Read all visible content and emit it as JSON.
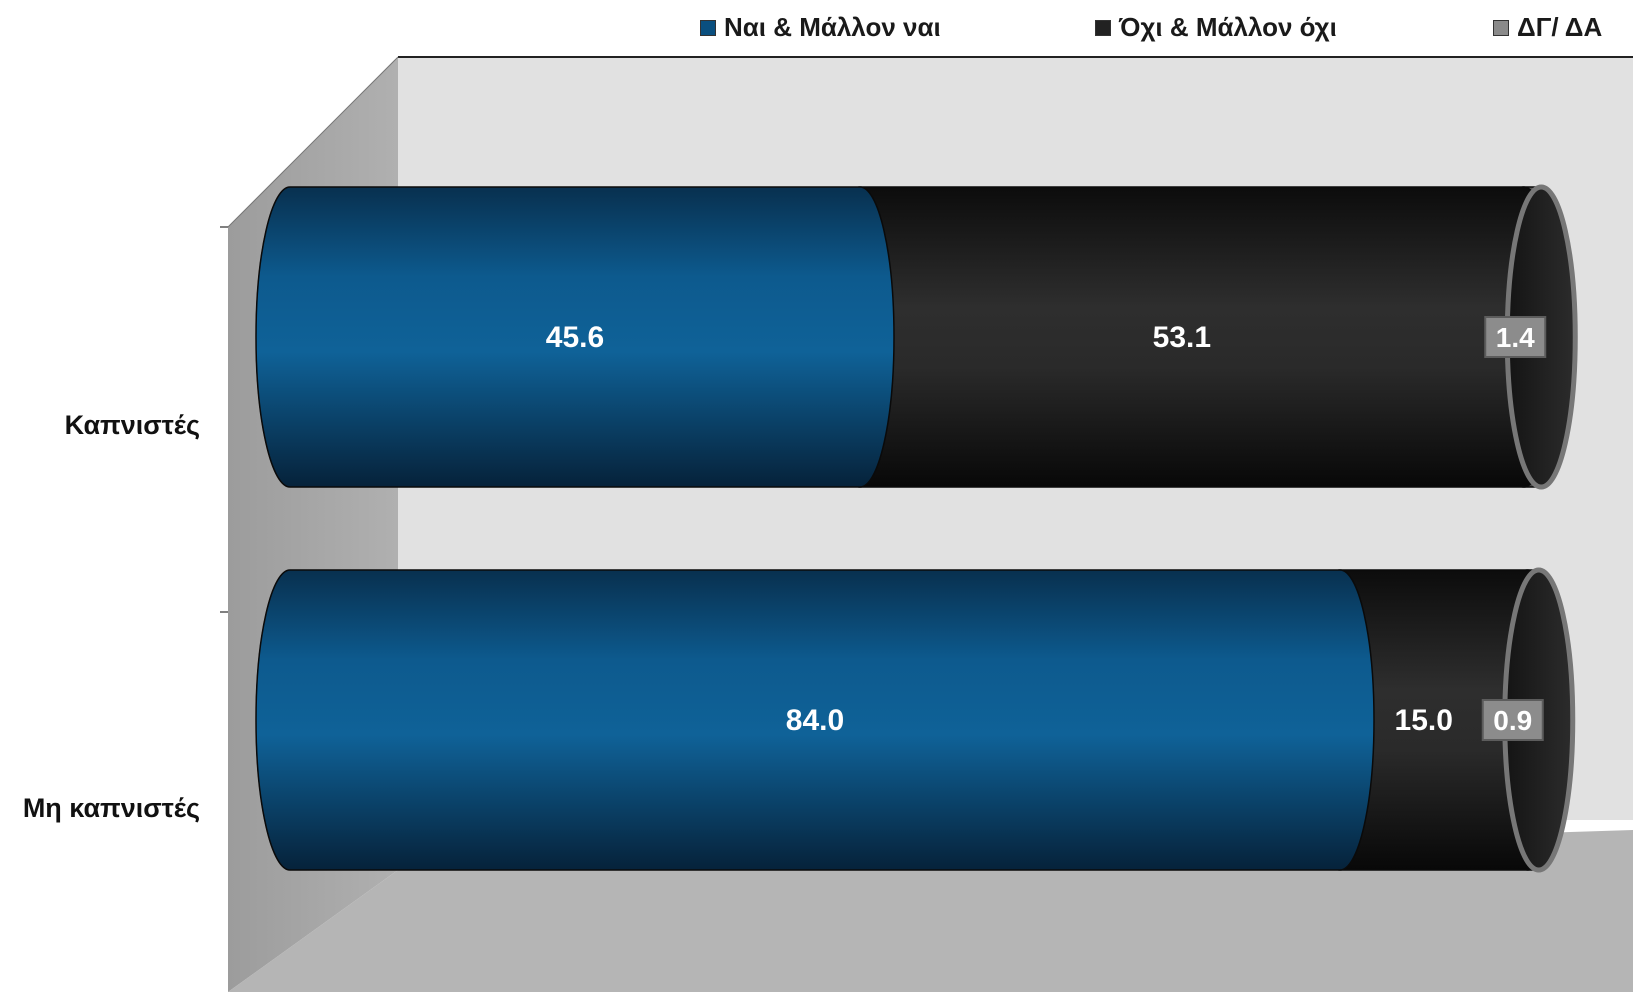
{
  "chart_data": {
    "type": "bar",
    "orientation": "horizontal",
    "stacked": true,
    "style": "3d-cylinder",
    "title": "",
    "xlabel": "",
    "ylabel": "",
    "categories": [
      "Καπνιστές",
      "Μη καπνιστές"
    ],
    "series": [
      {
        "name": "Ναι & Μάλλον ναι",
        "values": [
          45.6,
          84.0
        ],
        "color": "#0a4f7f"
      },
      {
        "name": "Όχι & Μάλλον όχι",
        "values": [
          53.1,
          15.0
        ],
        "color": "#222222"
      },
      {
        "name": "ΔΓ/ ΔΑ",
        "values": [
          1.4,
          0.9
        ],
        "color": "#8a8a8a"
      }
    ],
    "data_labels": [
      [
        "45.6",
        "53.1",
        "1.4"
      ],
      [
        "84.0",
        "15.0",
        "0.9"
      ]
    ],
    "xlim": [
      0,
      100
    ],
    "legend_position": "top",
    "grid": false
  },
  "colors": {
    "back_wall": "#e1e1e1",
    "side_wall": "#a6a6a6",
    "floor": "#b3b3b3",
    "nai": "#0a4f7f",
    "oxi": "#222222",
    "dgda": "#8a8a8a"
  }
}
